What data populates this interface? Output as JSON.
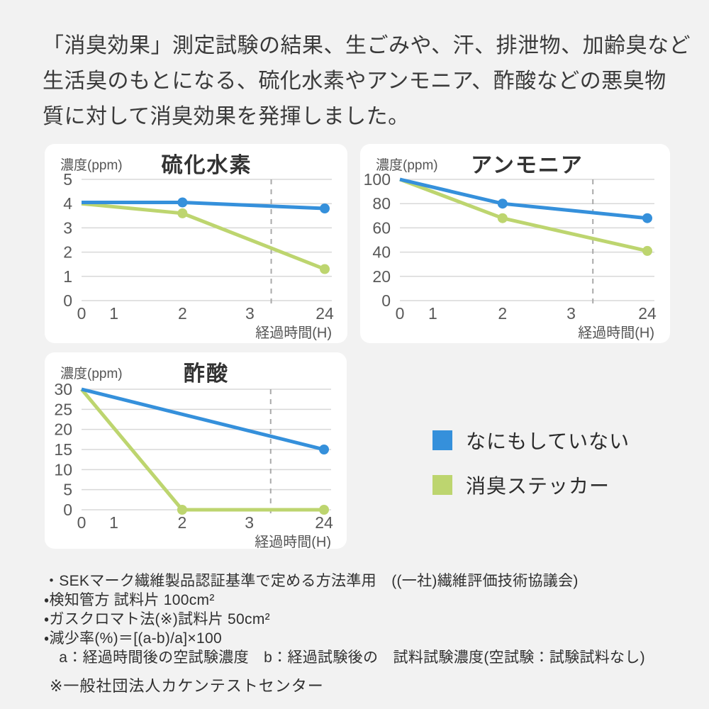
{
  "page": {
    "background_color": "#F2F2F2",
    "panel_color": "#FFFFFF"
  },
  "header": {
    "lines": [
      "「消臭効果」測定試験の結果、生ごみや、汗、排泄物、加齢臭など",
      "生活臭のもとになる、硫化水素やアンモニア、酢酸などの悪臭物",
      "質に対して消臭効果を発揮しました。"
    ]
  },
  "colors": {
    "blue": "#3590DB",
    "green": "#BDD56F",
    "grid": "#D8D8D8",
    "dashed_line": "#A9A9A9",
    "tick_text": "#595959",
    "title_text": "#333333"
  },
  "legend": {
    "items": [
      {
        "label": "なにもしていない",
        "color": "#3590DB"
      },
      {
        "label": "消臭ステッカー",
        "color": "#BDD56F"
      }
    ]
  },
  "chart_data": [
    {
      "type": "line",
      "title": "硫化水素",
      "ylabel": "濃度(ppm)",
      "xlabel": "経過時間(H)",
      "x_ticks": [
        0,
        1,
        2,
        3,
        24
      ],
      "y_ticks": [
        0,
        1,
        2,
        3,
        4,
        5
      ],
      "ylim": [
        0,
        5
      ],
      "grid": true,
      "axis_break_dashed_line": "between 3H and 24H",
      "series": [
        {
          "name": "なにもしていない",
          "color": "#3590DB",
          "x": [
            0,
            2,
            24
          ],
          "values": [
            4.05,
            4.05,
            3.8
          ]
        },
        {
          "name": "消臭ステッカー",
          "color": "#BDD56F",
          "x": [
            0,
            2,
            24
          ],
          "values": [
            4.0,
            3.6,
            1.3
          ]
        }
      ]
    },
    {
      "type": "line",
      "title": "アンモニア",
      "ylabel": "濃度(ppm)",
      "xlabel": "経過時間(H)",
      "x_ticks": [
        0,
        1,
        2,
        3,
        24
      ],
      "y_ticks": [
        0,
        20,
        40,
        60,
        80,
        100
      ],
      "ylim": [
        0,
        100
      ],
      "grid": true,
      "axis_break_dashed_line": "between 3H and 24H",
      "series": [
        {
          "name": "なにもしていない",
          "color": "#3590DB",
          "x": [
            0,
            2,
            24
          ],
          "values": [
            100,
            80,
            68
          ]
        },
        {
          "name": "消臭ステッカー",
          "color": "#BDD56F",
          "x": [
            0,
            2,
            24
          ],
          "values": [
            100,
            68,
            41
          ]
        }
      ]
    },
    {
      "type": "line",
      "title": "酢酸",
      "ylabel": "濃度(ppm)",
      "xlabel": "経過時間(H)",
      "x_ticks": [
        0,
        1,
        2,
        3,
        24
      ],
      "y_ticks": [
        0,
        5,
        10,
        15,
        20,
        25,
        30
      ],
      "ylim": [
        0,
        30
      ],
      "grid": true,
      "axis_break_dashed_line": "between 3H and 24H",
      "series": [
        {
          "name": "なにもしていない",
          "color": "#3590DB",
          "x": [
            0,
            24
          ],
          "values": [
            30,
            15
          ]
        },
        {
          "name": "消臭ステッカー",
          "color": "#BDD56F",
          "x": [
            0,
            2,
            24
          ],
          "values": [
            30,
            0,
            0
          ]
        }
      ]
    }
  ],
  "notes": {
    "lines": [
      "・SEKマーク繊維製品認証基準で定める方法準用　((一社)繊維評価技術協議会)",
      "・検知管方 試料片 100cm²",
      "・ガスクロマト法(※)試料片 50cm²",
      "・減少率(%)＝[(a-b)/a]×100",
      "　a：経過時間後の空試験濃度　b：経過試験後の　試料試験濃度(空試験：試験試料なし)"
    ]
  },
  "source_note": "※一般社団法人カケンテストセンター"
}
